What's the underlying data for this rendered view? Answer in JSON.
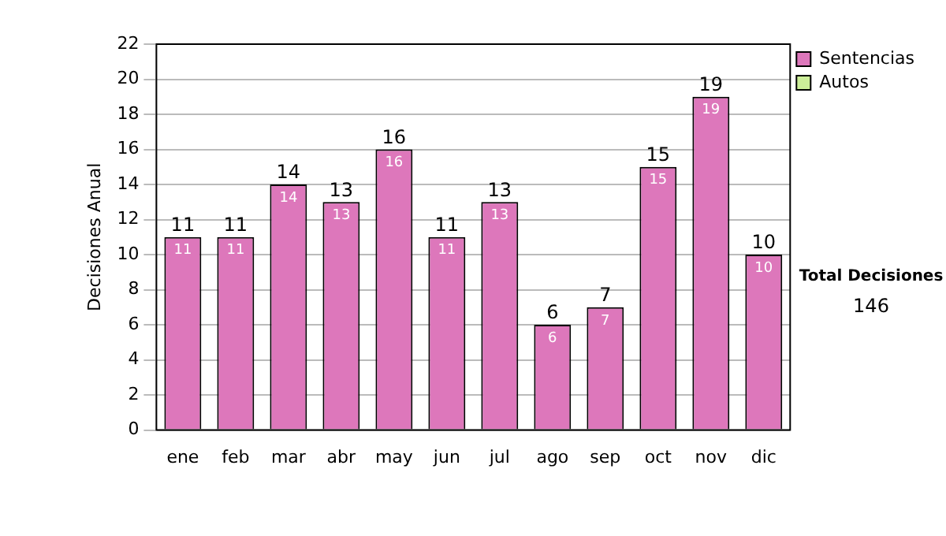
{
  "chart_data": {
    "type": "bar",
    "ylabel": "Decisiones Anual",
    "categories": [
      "ene",
      "feb",
      "mar",
      "abr",
      "may",
      "jun",
      "jul",
      "ago",
      "sep",
      "oct",
      "nov",
      "dic"
    ],
    "series": [
      {
        "name": "Sentencias",
        "color": "#dd77bb",
        "values": [
          11,
          11,
          14,
          13,
          16,
          11,
          13,
          6,
          7,
          15,
          19,
          10
        ],
        "value_labels": [
          "11",
          "11",
          "14",
          "13",
          "16",
          "11",
          "13",
          "6",
          "7",
          "15",
          "19",
          "10"
        ]
      },
      {
        "name": "Autos",
        "color": "#ccee99",
        "values": [
          0,
          0,
          0,
          0,
          0,
          0,
          0,
          0,
          0,
          0,
          0,
          0
        ]
      }
    ],
    "stacked": true,
    "totals": [
      "11",
      "11",
      "14",
      "13",
      "16",
      "11",
      "13",
      "6",
      "7",
      "15",
      "19",
      "10"
    ],
    "ylim": [
      0,
      22
    ],
    "yticks": [
      0,
      2,
      4,
      6,
      8,
      10,
      12,
      14,
      16,
      18,
      20,
      22
    ],
    "grid": "y",
    "legend": "right",
    "annotations": [
      "Total Decisiones",
      "146"
    ]
  }
}
